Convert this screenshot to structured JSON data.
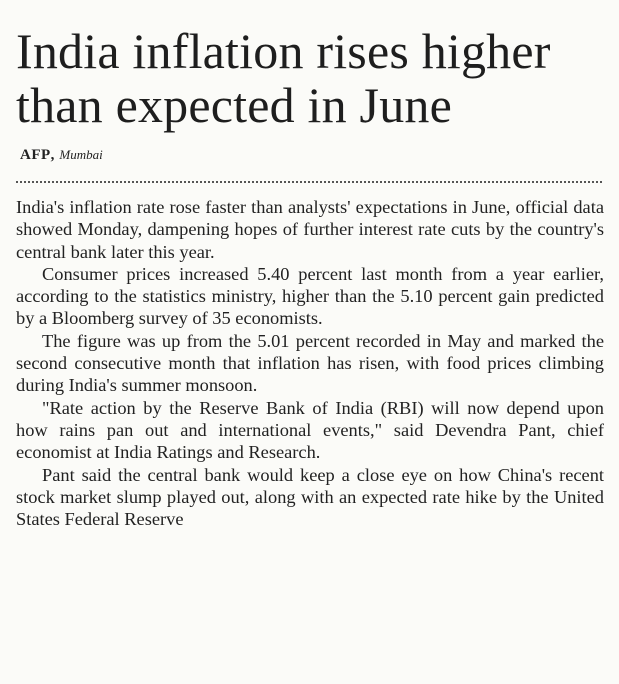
{
  "article": {
    "headline": "India inflation rises higher than expected in June",
    "byline": {
      "agency": "AFP",
      "separator": ",",
      "location": "Mumbai"
    },
    "paragraphs": [
      "India's inflation rate rose faster than analysts' expectations in June, official data showed Monday, dampening hopes of further interest rate cuts by the country's central bank later this year.",
      "Consumer prices increased 5.40 percent last month from a year earlier, according to the statistics ministry, higher than the 5.10 percent gain predicted by a Bloomberg survey of 35 economists.",
      "The figure was up from the 5.01 percent recorded in May and marked the second consecutive month that inflation has risen, with food prices climbing during India's summer monsoon.",
      "\"Rate action by the Reserve Bank of India (RBI) will now depend upon how rains pan out and international events,\" said Devendra Pant, chief economist at India Ratings and Research.",
      "Pant said the central bank would keep a close eye on how China's recent stock market slump played out, along with an expected rate hike by the United States Federal Reserve"
    ]
  }
}
